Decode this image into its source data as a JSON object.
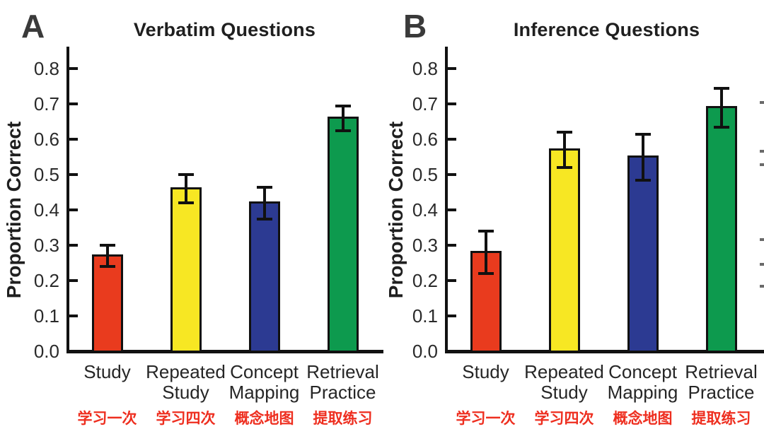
{
  "figure": {
    "background": "#ffffff",
    "annotation_color": "#ee2e1f",
    "axis_color": "#111111"
  },
  "chart_data": [
    {
      "type": "bar",
      "panel_letter": "A",
      "title": "Verbatim Questions",
      "ylabel": "Proportion Correct",
      "xlabel": "",
      "categories": [
        "Study",
        "Repeated Study",
        "Concept Mapping",
        "Retrieval Practice"
      ],
      "categories_zh": [
        "学习一次",
        "学习四次",
        "概念地图",
        "提取练习"
      ],
      "values": [
        0.27,
        0.46,
        0.42,
        0.66
      ],
      "error_bars": [
        0.03,
        0.04,
        0.045,
        0.035
      ],
      "bar_colors": [
        "#e93b1e",
        "#f7e723",
        "#2c3a92",
        "#0d9a4e"
      ],
      "yticks": [
        0.0,
        0.1,
        0.2,
        0.3,
        0.4,
        0.5,
        0.6,
        0.7,
        0.8
      ],
      "ylim": [
        0,
        0.85
      ],
      "grid": false,
      "legend": "none"
    },
    {
      "type": "bar",
      "panel_letter": "B",
      "title": "Inference Questions",
      "ylabel": "Proportion Correct",
      "xlabel": "",
      "categories": [
        "Study",
        "Repeated Study",
        "Concept Mapping",
        "Retrieval Practice"
      ],
      "categories_zh": [
        "学习一次",
        "学习四次",
        "概念地图",
        "提取练习"
      ],
      "values": [
        0.28,
        0.57,
        0.55,
        0.69
      ],
      "error_bars": [
        0.06,
        0.05,
        0.065,
        0.055
      ],
      "bar_colors": [
        "#e93b1e",
        "#f7e723",
        "#2c3a92",
        "#0d9a4e"
      ],
      "yticks": [
        0.0,
        0.1,
        0.2,
        0.3,
        0.4,
        0.5,
        0.6,
        0.7,
        0.8
      ],
      "ylim": [
        0,
        0.85
      ],
      "grid": false,
      "legend": "none"
    }
  ]
}
